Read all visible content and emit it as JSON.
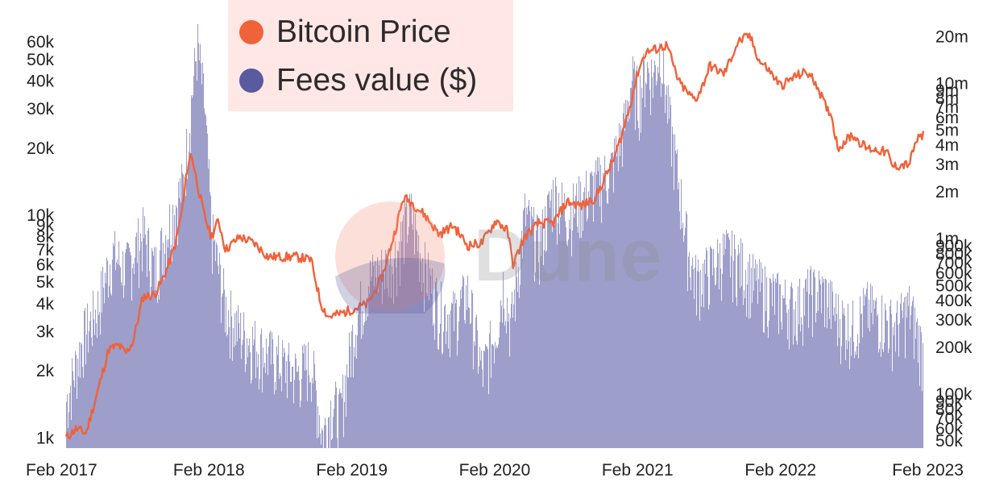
{
  "chart_data": {
    "type": "bar+line",
    "title": "",
    "watermark": "Dune",
    "legend": {
      "placement": "top-left",
      "entries": [
        {
          "name": "Bitcoin Price",
          "color": "#f0623a"
        },
        {
          "name": "Fees value ($)",
          "color": "#5a5a9e"
        }
      ]
    },
    "x_ticks": [
      "Feb 2017",
      "Feb 2018",
      "Feb 2019",
      "Feb 2020",
      "Feb 2021",
      "Feb 2022",
      "Feb 2023"
    ],
    "x_range": [
      2017.08,
      2023.1
    ],
    "left_axis": {
      "scale": "log",
      "range": [
        900,
        72000
      ],
      "ticks": [
        {
          "label": "60k",
          "value": 60000
        },
        {
          "label": "50k",
          "value": 50000
        },
        {
          "label": "40k",
          "value": 40000
        },
        {
          "label": "30k",
          "value": 30000
        },
        {
          "label": "20k",
          "value": 20000
        },
        {
          "label": "10k",
          "value": 10000
        },
        {
          "label": "9k",
          "value": 9000
        },
        {
          "label": "8k",
          "value": 8000
        },
        {
          "label": "7k",
          "value": 7000
        },
        {
          "label": "6k",
          "value": 6000
        },
        {
          "label": "5k",
          "value": 5000
        },
        {
          "label": "4k",
          "value": 4000
        },
        {
          "label": "3k",
          "value": 3000
        },
        {
          "label": "2k",
          "value": 2000
        },
        {
          "label": "1k",
          "value": 1000
        }
      ]
    },
    "right_axis": {
      "scale": "log",
      "range": [
        45000,
        24000000
      ],
      "ticks": [
        {
          "label": "20m",
          "value": 20000000
        },
        {
          "label": "10m",
          "value": 10000000
        },
        {
          "label": "9m",
          "value": 9000000
        },
        {
          "label": "8m",
          "value": 8000000
        },
        {
          "label": "7m",
          "value": 7000000
        },
        {
          "label": "6m",
          "value": 6000000
        },
        {
          "label": "5m",
          "value": 5000000
        },
        {
          "label": "4m",
          "value": 4000000
        },
        {
          "label": "3m",
          "value": 3000000
        },
        {
          "label": "2m",
          "value": 2000000
        },
        {
          "label": "1m",
          "value": 1000000
        },
        {
          "label": "900k",
          "value": 900000
        },
        {
          "label": "800k",
          "value": 800000
        },
        {
          "label": "700k",
          "value": 700000
        },
        {
          "label": "600k",
          "value": 600000
        },
        {
          "label": "500k",
          "value": 500000
        },
        {
          "label": "400k",
          "value": 400000
        },
        {
          "label": "300k",
          "value": 300000
        },
        {
          "label": "200k",
          "value": 200000
        },
        {
          "label": "100k",
          "value": 100000
        },
        {
          "label": "90k",
          "value": 90000
        },
        {
          "label": "80k",
          "value": 80000
        },
        {
          "label": "70k",
          "value": 70000
        },
        {
          "label": "60k",
          "value": 60000
        },
        {
          "label": "50k",
          "value": 50000
        }
      ]
    },
    "series": [
      {
        "name": "Bitcoin Price",
        "type": "line",
        "axis": "left",
        "x": [
          2017.08,
          2017.15,
          2017.22,
          2017.3,
          2017.38,
          2017.45,
          2017.5,
          2017.55,
          2017.62,
          2017.7,
          2017.75,
          2017.8,
          2017.85,
          2017.9,
          2017.93,
          2017.96,
          2018.0,
          2018.05,
          2018.1,
          2018.15,
          2018.2,
          2018.3,
          2018.4,
          2018.5,
          2018.6,
          2018.7,
          2018.8,
          2018.87,
          2018.92,
          2019.0,
          2019.1,
          2019.2,
          2019.3,
          2019.38,
          2019.45,
          2019.5,
          2019.6,
          2019.7,
          2019.8,
          2019.9,
          2020.0,
          2020.1,
          2020.18,
          2020.22,
          2020.3,
          2020.4,
          2020.5,
          2020.6,
          2020.7,
          2020.8,
          2020.87,
          2020.93,
          2021.0,
          2021.05,
          2021.1,
          2021.15,
          2021.2,
          2021.3,
          2021.38,
          2021.45,
          2021.5,
          2021.55,
          2021.6,
          2021.7,
          2021.8,
          2021.88,
          2021.95,
          2022.0,
          2022.1,
          2022.2,
          2022.28,
          2022.35,
          2022.42,
          2022.45,
          2022.5,
          2022.6,
          2022.7,
          2022.8,
          2022.85,
          2022.88,
          2022.95,
          2023.0,
          2023.05,
          2023.1
        ],
        "values": [
          1000,
          1100,
          1050,
          1600,
          2500,
          2600,
          2400,
          2700,
          4300,
          4400,
          5000,
          6000,
          7500,
          11000,
          16000,
          19000,
          14000,
          10000,
          8000,
          9500,
          7000,
          8000,
          7500,
          6500,
          6500,
          6500,
          6300,
          4000,
          3500,
          3600,
          3800,
          4000,
          5300,
          8000,
          12000,
          11500,
          10000,
          8200,
          9000,
          7300,
          7500,
          9500,
          8500,
          6000,
          8000,
          9200,
          9200,
          11500,
          11000,
          12000,
          15000,
          18000,
          25000,
          33000,
          45000,
          54000,
          55000,
          58000,
          40000,
          35000,
          33000,
          38000,
          47000,
          43000,
          60000,
          64000,
          49000,
          46000,
          38000,
          42000,
          44000,
          39000,
          30000,
          29000,
          20000,
          23000,
          20000,
          19500,
          19000,
          16500,
          16800,
          16900,
          21500,
          23000
        ],
        "color": "#f0623a"
      },
      {
        "name": "Fees value ($)",
        "type": "bar",
        "axis": "right",
        "x": [
          2017.08,
          2017.2,
          2017.3,
          2017.4,
          2017.5,
          2017.55,
          2017.62,
          2017.7,
          2017.8,
          2017.9,
          2017.96,
          2018.0,
          2018.05,
          2018.1,
          2018.2,
          2018.3,
          2018.5,
          2018.7,
          2018.8,
          2018.88,
          2018.95,
          2019.0,
          2019.1,
          2019.2,
          2019.3,
          2019.4,
          2019.45,
          2019.5,
          2019.6,
          2019.7,
          2019.8,
          2019.9,
          2020.0,
          2020.1,
          2020.15,
          2020.2,
          2020.3,
          2020.4,
          2020.5,
          2020.6,
          2020.7,
          2020.8,
          2020.9,
          2021.0,
          2021.05,
          2021.1,
          2021.15,
          2021.2,
          2021.25,
          2021.3,
          2021.38,
          2021.45,
          2021.5,
          2021.6,
          2021.7,
          2021.8,
          2021.9,
          2022.0,
          2022.1,
          2022.2,
          2022.3,
          2022.4,
          2022.5,
          2022.6,
          2022.7,
          2022.8,
          2022.9,
          2023.0,
          2023.1
        ],
        "values": [
          100000,
          260000,
          400000,
          900000,
          700000,
          900000,
          1200000,
          700000,
          1400000,
          2500000,
          9000000,
          20000000,
          8000000,
          1200000,
          400000,
          280000,
          200000,
          150000,
          180000,
          60000,
          100000,
          80000,
          300000,
          600000,
          700000,
          900000,
          1300000,
          1600000,
          700000,
          400000,
          350000,
          500000,
          150000,
          300000,
          600000,
          300000,
          1600000,
          1000000,
          2200000,
          1600000,
          2000000,
          2500000,
          3000000,
          6000000,
          12000000,
          9000000,
          14000000,
          12000000,
          19000000,
          8000000,
          2500000,
          900000,
          600000,
          700000,
          900000,
          800000,
          600000,
          500000,
          450000,
          400000,
          500000,
          500000,
          350000,
          300000,
          400000,
          350000,
          300000,
          400000,
          200000
        ],
        "color": "#8a8ac0"
      }
    ]
  }
}
